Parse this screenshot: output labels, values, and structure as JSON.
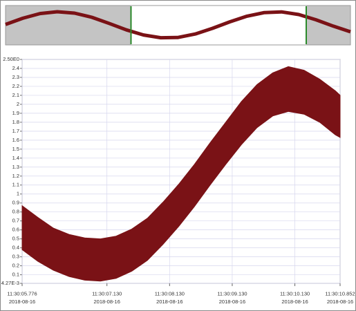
{
  "chart_data": [
    {
      "type": "line",
      "color": "#7a1216",
      "ylim": [
        0,
        2.5
      ],
      "values": [
        1.28,
        1.73,
        2.07,
        2.2,
        2.1,
        1.8,
        1.36,
        0.89,
        0.52,
        0.32,
        0.34,
        0.59,
        1.0,
        1.47,
        1.88,
        2.14,
        2.19,
        2.0,
        1.62,
        1.16,
        0.75
      ]
    },
    {
      "type": "band",
      "color": "#7a1216",
      "grid": true,
      "x": [
        0,
        0.25,
        0.5,
        0.75,
        1.0,
        1.25,
        1.5,
        1.75,
        2.0,
        2.25,
        2.5,
        2.75,
        3.0,
        3.25,
        3.5,
        3.75,
        4.0,
        4.25,
        4.5,
        4.75,
        5.0,
        5.076
      ],
      "upper": [
        0.87,
        0.74,
        0.62,
        0.55,
        0.51,
        0.5,
        0.53,
        0.61,
        0.73,
        0.91,
        1.11,
        1.33,
        1.57,
        1.8,
        2.03,
        2.22,
        2.35,
        2.42,
        2.38,
        2.28,
        2.15,
        2.1
      ],
      "lower": [
        0.38,
        0.25,
        0.15,
        0.08,
        0.04,
        0.03,
        0.06,
        0.14,
        0.26,
        0.44,
        0.64,
        0.86,
        1.1,
        1.33,
        1.55,
        1.74,
        1.87,
        1.92,
        1.89,
        1.8,
        1.66,
        1.63
      ],
      "xlim": [
        0,
        5.076
      ],
      "xticks": [
        {
          "value": 0,
          "label": "11:30:05.776",
          "date": "2018-08-16"
        },
        {
          "value": 1.354,
          "label": "11:30:07.130",
          "date": "2018-08-16"
        },
        {
          "value": 2.354,
          "label": "11:30:08.130",
          "date": "2018-08-16"
        },
        {
          "value": 3.354,
          "label": "11:30:09.130",
          "date": "2018-08-16"
        },
        {
          "value": 4.354,
          "label": "11:30:10.130",
          "date": "2018-08-16"
        },
        {
          "value": 5.076,
          "label": "11:30:10.852",
          "date": "2018-08-16"
        }
      ],
      "ylim": [
        0.00427,
        2.5
      ],
      "yticks": [
        {
          "value": 0.00427,
          "label": "4.27E-3"
        },
        0.1,
        0.2,
        0.3,
        0.4,
        0.5,
        0.6,
        0.7,
        0.8,
        0.9,
        1,
        1.1,
        1.2,
        1.3,
        1.4,
        1.5,
        1.6,
        1.7,
        1.8,
        1.9,
        2,
        2.1,
        2.2,
        2.3,
        2.4,
        {
          "value": 2.5,
          "label": "2.50E0"
        }
      ]
    }
  ]
}
